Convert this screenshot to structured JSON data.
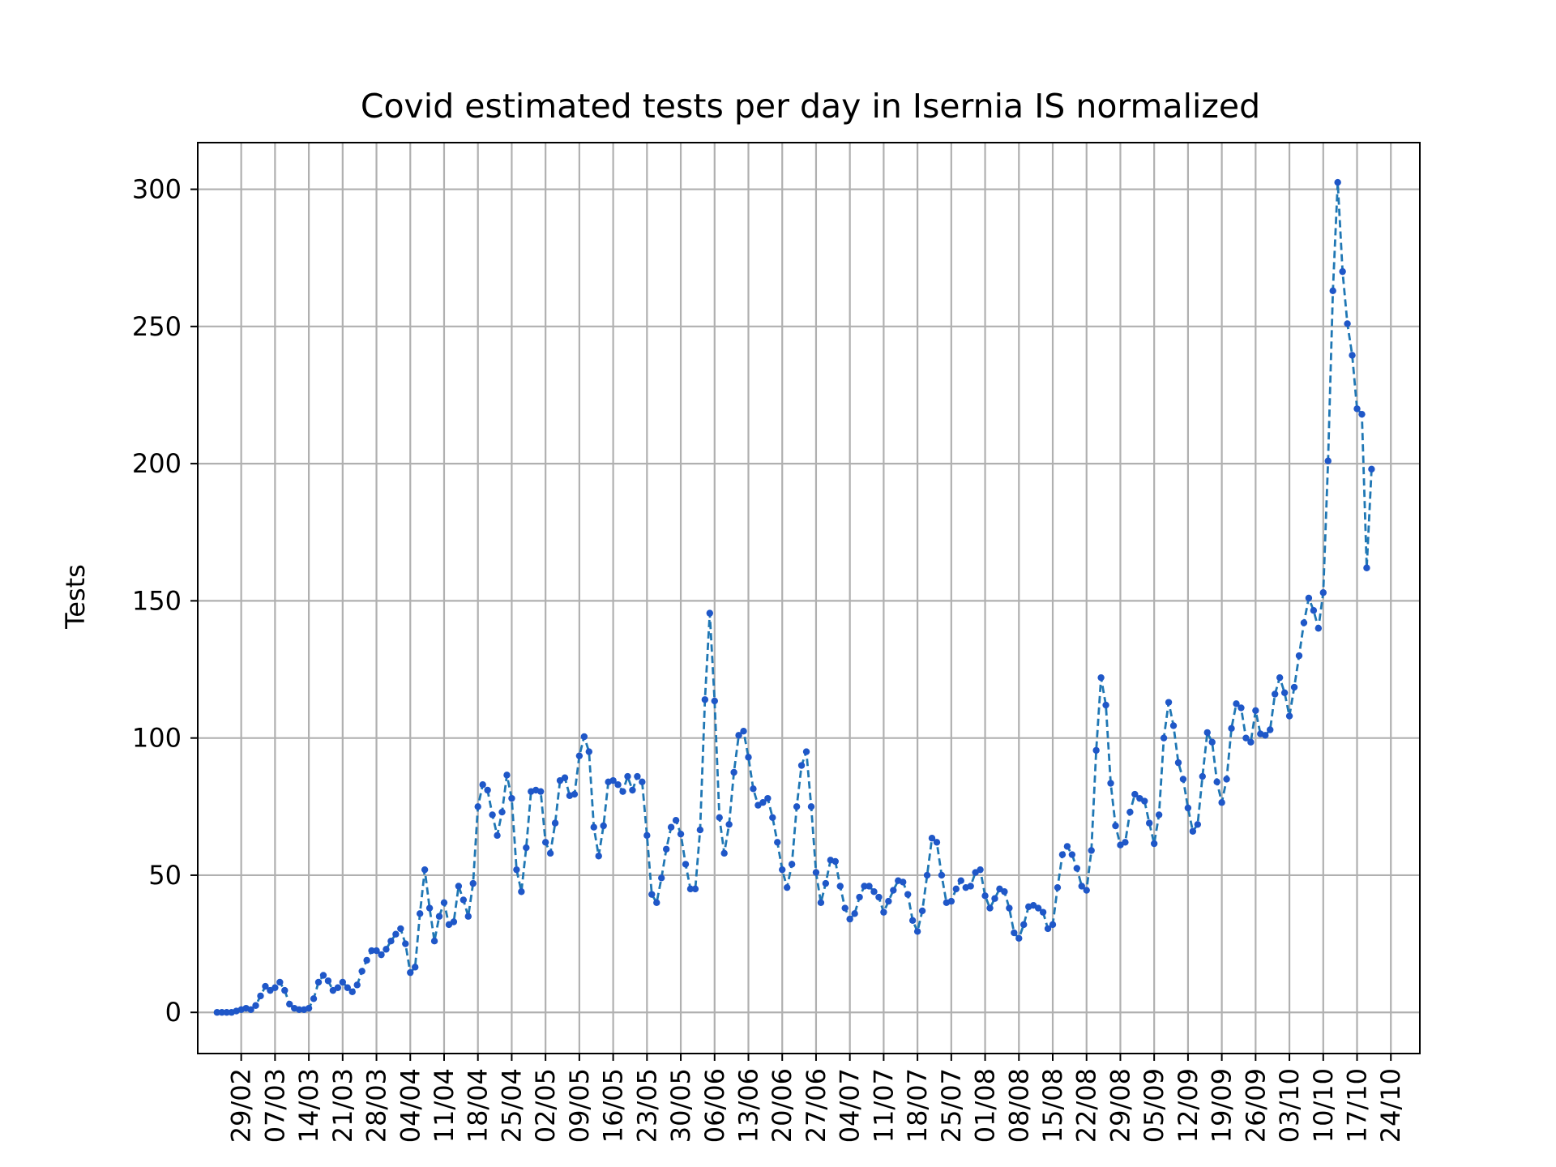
{
  "chart_data": {
    "type": "line",
    "title": "Covid estimated tests per day in Isernia IS normalized",
    "xlabel": "",
    "ylabel": "Tests",
    "grid": true,
    "legend": "none",
    "line_style": "dashed",
    "marker": "dot",
    "colors": {
      "line": "#1f77b4",
      "marker": "#1f57c8",
      "grid": "#b0b0b0"
    },
    "x_start": "2020-02-24",
    "x_ticks": [
      {
        "label": "29/02",
        "date": "2020-02-29"
      },
      {
        "label": "07/03",
        "date": "2020-03-07"
      },
      {
        "label": "14/03",
        "date": "2020-03-14"
      },
      {
        "label": "21/03",
        "date": "2020-03-21"
      },
      {
        "label": "28/03",
        "date": "2020-03-28"
      },
      {
        "label": "04/04",
        "date": "2020-04-04"
      },
      {
        "label": "11/04",
        "date": "2020-04-11"
      },
      {
        "label": "18/04",
        "date": "2020-04-18"
      },
      {
        "label": "25/04",
        "date": "2020-04-25"
      },
      {
        "label": "02/05",
        "date": "2020-05-02"
      },
      {
        "label": "09/05",
        "date": "2020-05-09"
      },
      {
        "label": "16/05",
        "date": "2020-05-16"
      },
      {
        "label": "23/05",
        "date": "2020-05-23"
      },
      {
        "label": "30/05",
        "date": "2020-05-30"
      },
      {
        "label": "06/06",
        "date": "2020-06-06"
      },
      {
        "label": "13/06",
        "date": "2020-06-13"
      },
      {
        "label": "20/06",
        "date": "2020-06-20"
      },
      {
        "label": "27/06",
        "date": "2020-06-27"
      },
      {
        "label": "04/07",
        "date": "2020-07-04"
      },
      {
        "label": "11/07",
        "date": "2020-07-11"
      },
      {
        "label": "18/07",
        "date": "2020-07-18"
      },
      {
        "label": "25/07",
        "date": "2020-07-25"
      },
      {
        "label": "01/08",
        "date": "2020-08-01"
      },
      {
        "label": "08/08",
        "date": "2020-08-08"
      },
      {
        "label": "15/08",
        "date": "2020-08-15"
      },
      {
        "label": "22/08",
        "date": "2020-08-22"
      },
      {
        "label": "29/08",
        "date": "2020-08-29"
      },
      {
        "label": "05/09",
        "date": "2020-09-05"
      },
      {
        "label": "12/09",
        "date": "2020-09-12"
      },
      {
        "label": "19/09",
        "date": "2020-09-19"
      },
      {
        "label": "26/09",
        "date": "2020-09-26"
      },
      {
        "label": "03/10",
        "date": "2020-10-03"
      },
      {
        "label": "10/10",
        "date": "2020-10-10"
      },
      {
        "label": "17/10",
        "date": "2020-10-17"
      },
      {
        "label": "24/10",
        "date": "2020-10-24"
      }
    ],
    "y_ticks": [
      0,
      50,
      100,
      150,
      200,
      250,
      300
    ],
    "xlim": [
      "2020-02-20",
      "2020-10-30"
    ],
    "ylim": [
      -15,
      317
    ],
    "values": [
      0,
      0,
      0,
      0,
      0.5,
      1,
      1.5,
      1,
      2.5,
      6,
      9.5,
      8,
      9,
      11,
      8,
      3,
      1.5,
      1,
      1,
      1.5,
      5,
      11,
      13.5,
      11.5,
      8,
      9,
      11,
      9,
      7.5,
      10,
      15,
      19,
      22.5,
      22.5,
      21,
      23,
      26,
      28.5,
      30.5,
      25,
      14.5,
      16.5,
      36,
      52,
      38,
      26,
      35,
      40,
      32,
      33,
      46,
      41,
      35,
      47,
      75,
      83,
      81,
      72,
      64.5,
      73,
      86.5,
      78,
      52,
      44,
      60,
      80.5,
      81,
      80.5,
      62,
      58,
      69,
      84.5,
      85.5,
      79,
      79.5,
      93.5,
      100.5,
      95,
      67.5,
      57,
      68,
      84,
      84.5,
      83,
      80.5,
      86,
      81,
      86,
      84,
      64.5,
      43,
      40,
      49,
      59.5,
      67.5,
      70,
      65,
      54,
      45,
      45,
      66.5,
      114,
      145.5,
      113.5,
      71,
      58,
      68.5,
      87.5,
      101,
      102.5,
      93,
      81.5,
      75.5,
      76.5,
      78,
      71,
      62,
      52,
      45.5,
      54,
      75,
      90,
      95,
      75,
      51,
      40,
      47,
      55.5,
      55,
      46,
      38,
      34,
      36,
      42,
      46,
      46,
      44,
      42,
      36.5,
      40.5,
      44.5,
      48,
      47.5,
      43,
      33.5,
      29.5,
      37,
      50,
      63.5,
      62,
      50,
      40,
      40.5,
      45,
      48,
      45.5,
      46,
      51,
      52,
      42.5,
      38,
      41.5,
      45,
      44,
      38,
      29,
      27,
      32,
      38.5,
      39,
      38,
      36.5,
      30.5,
      32,
      45.5,
      57.5,
      60.5,
      57.5,
      52.5,
      46,
      44.5,
      59,
      95.5,
      122,
      112,
      83.5,
      68,
      61,
      62,
      73,
      79.5,
      78,
      77,
      69,
      61.5,
      72,
      100,
      113,
      104.5,
      91,
      85,
      74.5,
      66,
      68.5,
      86,
      102,
      98.5,
      84,
      76.5,
      85,
      103.5,
      112.5,
      111,
      100,
      98.5,
      110,
      101.5,
      101,
      103,
      116,
      122,
      116.5,
      108,
      118.5,
      130,
      142,
      151,
      146.5,
      140,
      153,
      201,
      263,
      302.5,
      270,
      251,
      239.5,
      220,
      218,
      162,
      198
    ]
  }
}
